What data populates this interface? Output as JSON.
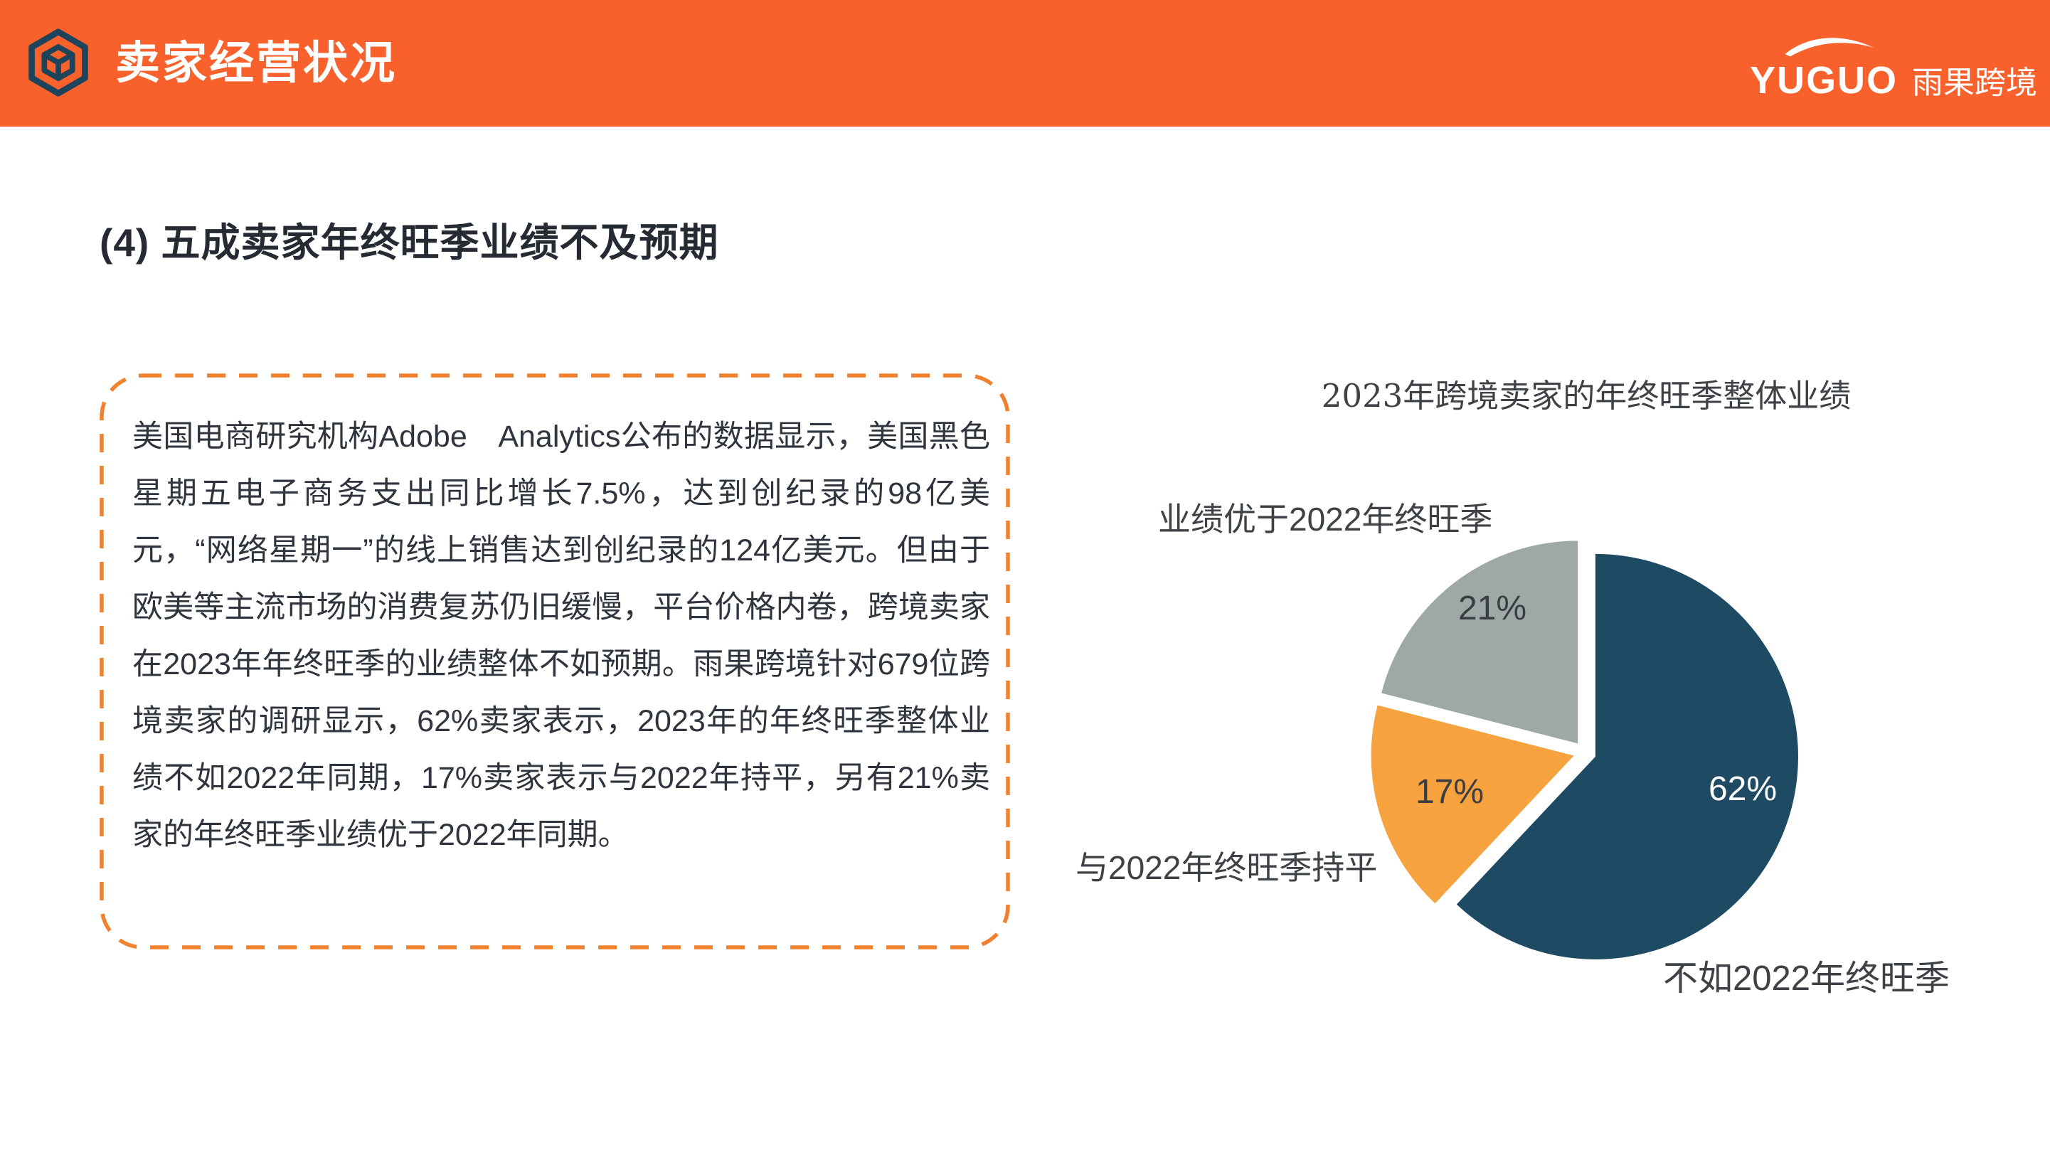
{
  "header": {
    "title": "卖家经营状况",
    "brand_latin": "YUGUO",
    "brand_cn": "雨果跨境"
  },
  "section": {
    "title": "(4) 五成卖家年终旺季业绩不及预期"
  },
  "summary": {
    "paragraph": "美国电商研究机构Adobe　Analytics公布的数据显示，美国黑色星期五电子商务支出同比增长7.5%，达到创纪录的98亿美元，“网络星期一”的线上销售达到创纪录的124亿美元。但由于欧美等主流市场的消费复苏仍旧缓慢，平台价格内卷，跨境卖家在2023年年终旺季的业绩整体不如预期。雨果跨境针对679位跨境卖家的调研显示，62%卖家表示，2023年的年终旺季整体业绩不如2022年同期，17%卖家表示与2022年持平，另有21%卖家的年终旺季业绩优于2022年同期。"
  },
  "chart_data": {
    "type": "pie",
    "title": "2023年跨境卖家的年终旺季整体业绩",
    "start_angle_deg": 0,
    "direction": "clockwise",
    "exploded": true,
    "slices": [
      {
        "label": "不如2022年终旺季",
        "value": 62,
        "display": "62%",
        "color": "#1F4A63"
      },
      {
        "label": "与2022年终旺季持平",
        "value": 17,
        "display": "17%",
        "color": "#F5A23F"
      },
      {
        "label": "业绩优于2022年终旺季",
        "value": 21,
        "display": "21%",
        "color": "#9EA8A6"
      }
    ]
  },
  "colors": {
    "header_bg": "#F8612C",
    "box_border": "#F0822F",
    "title_text": "#252A33",
    "body_text": "#2F343D",
    "chart_text": "#3E4247"
  }
}
